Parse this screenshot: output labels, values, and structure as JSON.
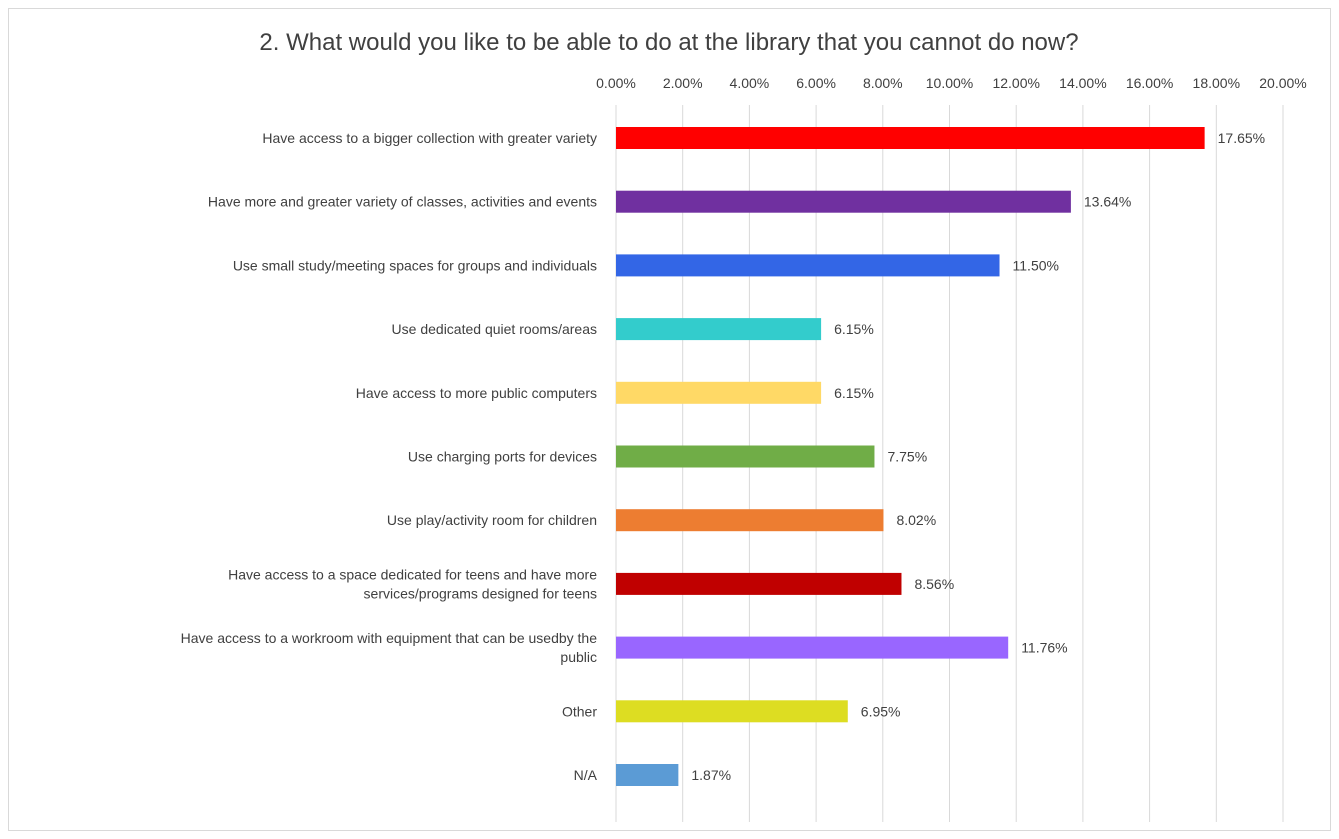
{
  "chart_data": {
    "type": "bar",
    "orientation": "horizontal",
    "title": "2. What would you like to be able to do at the library that you cannot do now?",
    "xlabel": "",
    "ylabel": "",
    "xlim": [
      0,
      20
    ],
    "x_ticks": [
      "0.00%",
      "2.00%",
      "4.00%",
      "6.00%",
      "8.00%",
      "10.00%",
      "12.00%",
      "14.00%",
      "16.00%",
      "18.00%",
      "20.00%"
    ],
    "x_axis_position": "top",
    "grid": true,
    "legend": "none",
    "categories": [
      "Have access to a bigger collection with greater variety",
      "Have more and greater variety of classes, activities and events",
      "Use small study/meeting spaces for groups and individuals",
      "Use dedicated quiet rooms/areas",
      "Have access to more public computers",
      "Use charging ports for devices",
      "Use play/activity room for children",
      "Have access to a space dedicated for teens and have more services/programs designed for teens",
      "Have access to a workroom with equipment that can be usedby the public",
      "Other",
      "N/A"
    ],
    "category_lines": [
      [
        "Have access to a bigger collection with greater variety"
      ],
      [
        "Have more and greater variety of classes, activities and events"
      ],
      [
        "Use small study/meeting spaces for groups and individuals"
      ],
      [
        "Use dedicated quiet rooms/areas"
      ],
      [
        "Have access to more public computers"
      ],
      [
        "Use charging ports for devices"
      ],
      [
        "Use play/activity room for children"
      ],
      [
        "Have access to a space dedicated for teens and have more",
        "services/programs designed for teens"
      ],
      [
        "Have access to a workroom with equipment that can be usedby the",
        "public"
      ],
      [
        "Other"
      ],
      [
        "N/A"
      ]
    ],
    "values": [
      17.65,
      13.64,
      11.5,
      6.15,
      6.15,
      7.75,
      8.02,
      8.56,
      11.76,
      6.95,
      1.87
    ],
    "data_labels": [
      "17.65%",
      "13.64%",
      "11.50%",
      "6.15%",
      "6.15%",
      "7.75%",
      "8.02%",
      "8.56%",
      "11.76%",
      "6.95%",
      "1.87%"
    ],
    "colors": [
      "#ff0000",
      "#7030a0",
      "#3366e6",
      "#33cccc",
      "#ffd966",
      "#70ad47",
      "#ed7d31",
      "#c00000",
      "#9966ff",
      "#dddd22",
      "#5b9bd5"
    ]
  }
}
